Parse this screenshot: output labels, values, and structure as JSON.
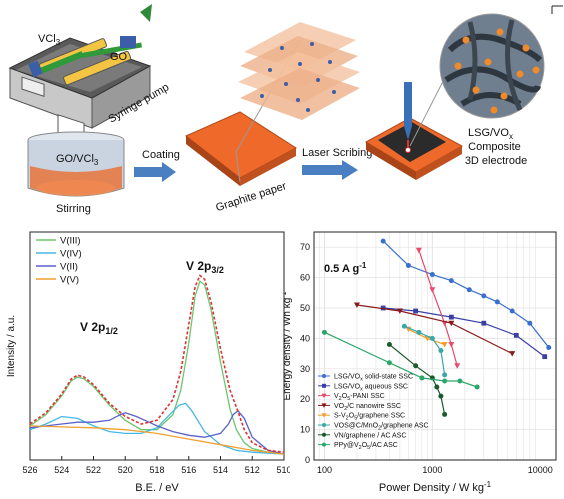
{
  "schematic": {
    "vcl3_label": "VCl",
    "vcl3_sub": "3",
    "go_label": "GO",
    "pump_label": "Syringe pump",
    "beaker_label": "GO/VCl",
    "beaker_sub": "3",
    "stirring_label": "Stirring",
    "coating_label": "Coating",
    "graphite_label": "Graphite paper",
    "laser_label": "Laser Scribing",
    "composite_line1": "LSG/VO",
    "composite_line1_sub": "x",
    "composite_line2": "Composite",
    "composite_line3": "3D electrode",
    "colors": {
      "orange": "#e8622a",
      "arrow": "#4a7fc1",
      "dark": "#2b2b2b"
    }
  },
  "chart_data": [
    {
      "type": "line",
      "title": "",
      "xlabel": "B.E. / eV",
      "ylabel": "Intensity / a.u.",
      "xlim": [
        526,
        510
      ],
      "x_ticks": [
        "526",
        "524",
        "522",
        "520",
        "518",
        "516",
        "514",
        "512",
        "510"
      ],
      "legend": [
        {
          "name": "V(III)",
          "color": "#6cc56c"
        },
        {
          "name": "V(IV)",
          "color": "#45b8e6"
        },
        {
          "name": "V(II)",
          "color": "#5a62c8"
        },
        {
          "name": "V(V)",
          "color": "#f0a030"
        }
      ],
      "annotations": [
        {
          "text": "V 2p",
          "sub": "1/2"
        },
        {
          "text": "V 2p",
          "sub": "3/2"
        }
      ],
      "series": [
        {
          "name": "V(III)",
          "color": "#6cc56c",
          "x": [
            526.5,
            525,
            524,
            523.4,
            523,
            522.6,
            522,
            521,
            520,
            519,
            518,
            517,
            516.5,
            516,
            515.6,
            515.3,
            515,
            514.6,
            514,
            513.4,
            513,
            512.5,
            512,
            511,
            510
          ],
          "y": [
            0.16,
            0.22,
            0.32,
            0.4,
            0.42,
            0.41,
            0.37,
            0.27,
            0.19,
            0.14,
            0.14,
            0.22,
            0.35,
            0.6,
            0.85,
            0.93,
            0.91,
            0.78,
            0.5,
            0.25,
            0.14,
            0.07,
            0.04,
            0.02,
            0.01
          ]
        },
        {
          "name": "V(IV)",
          "color": "#45b8e6",
          "x": [
            526.5,
            525,
            524,
            523,
            522,
            521,
            520,
            519,
            518,
            517.2,
            516.6,
            516.2,
            515.8,
            515,
            514,
            513,
            512,
            510
          ],
          "y": [
            0.14,
            0.17,
            0.21,
            0.2,
            0.16,
            0.13,
            0.12,
            0.12,
            0.15,
            0.22,
            0.27,
            0.28,
            0.24,
            0.13,
            0.06,
            0.03,
            0.02,
            0.01
          ]
        },
        {
          "name": "V(II)",
          "color": "#5a62c8",
          "x": [
            526.5,
            525,
            524,
            523,
            522,
            521,
            520.3,
            520,
            519.3,
            518.5,
            518,
            517,
            516,
            515,
            514,
            513.5,
            513.2,
            512.9,
            512.5,
            512,
            511,
            510
          ],
          "y": [
            0.15,
            0.16,
            0.17,
            0.18,
            0.18,
            0.19,
            0.22,
            0.23,
            0.21,
            0.18,
            0.16,
            0.13,
            0.11,
            0.1,
            0.12,
            0.17,
            0.22,
            0.24,
            0.2,
            0.1,
            0.03,
            0.01
          ]
        },
        {
          "name": "V(V)",
          "color": "#f0a030",
          "x": [
            526.5,
            524,
            522,
            520,
            518,
            516,
            514,
            512,
            510
          ],
          "y": [
            0.16,
            0.155,
            0.15,
            0.14,
            0.12,
            0.09,
            0.06,
            0.03,
            0.01
          ]
        },
        {
          "name": "",
          "color": "#e03030",
          "dashed": true,
          "x": [
            526.5,
            525,
            524,
            523.4,
            523,
            522.6,
            522,
            521,
            520,
            519,
            518,
            517,
            516.5,
            516,
            515.6,
            515.3,
            515,
            514.6,
            514,
            513.4,
            513,
            512.5,
            512,
            511,
            510
          ],
          "y": [
            0.17,
            0.23,
            0.33,
            0.41,
            0.43,
            0.42,
            0.38,
            0.28,
            0.21,
            0.17,
            0.19,
            0.3,
            0.45,
            0.7,
            0.9,
            0.96,
            0.94,
            0.82,
            0.57,
            0.35,
            0.26,
            0.14,
            0.07,
            0.03,
            0.02
          ]
        }
      ]
    },
    {
      "type": "line",
      "title": "",
      "xlabel": "Power Density / W kg",
      "xlabel_sup": "-1",
      "ylabel": "Energy density / Wh kg",
      "ylabel_sup": "-1",
      "xscale": "log",
      "xlim": [
        80,
        14000
      ],
      "ylim": [
        0,
        75
      ],
      "x_ticks": [
        {
          "v": 100,
          "t": "100"
        },
        {
          "v": 1000,
          "t": "1000"
        },
        {
          "v": 10000,
          "t": "10000"
        }
      ],
      "y_ticks": [
        0,
        10,
        20,
        30,
        40,
        50,
        60,
        70
      ],
      "grid": true,
      "annotation": {
        "text": "0.5 A g",
        "sup": "-1"
      },
      "series": [
        {
          "name": "LSG/VO",
          "name_sub": "x",
          "name_rest": " solid-state SSC",
          "color": "#3a6fd0",
          "marker": "circle",
          "x": [
            350,
            600,
            1000,
            1500,
            2200,
            3000,
            4000,
            5500,
            8000,
            12000
          ],
          "y": [
            72,
            64,
            61,
            59,
            56,
            54,
            52,
            49,
            45,
            37
          ]
        },
        {
          "name": "LSG/VO",
          "name_sub": "x",
          "name_rest": " aqueous SSC",
          "color": "#3840a8",
          "marker": "square",
          "x": [
            350,
            700,
            1500,
            3000,
            6000,
            11000
          ],
          "y": [
            50,
            49,
            47,
            45,
            41,
            34
          ]
        },
        {
          "name": "V",
          "name_sub": "2",
          "name_rest": "O",
          "name_sub2": "5",
          "name_rest2": "-PANI SSC",
          "color": "#e84a6a",
          "marker": "tri-down",
          "x": [
            750,
            1000,
            1300,
            1500,
            1700
          ],
          "y": [
            69,
            56,
            45,
            38,
            31
          ]
        },
        {
          "name": "VO",
          "name_sub": "2",
          "name_rest": "/C nanowire SSC",
          "color": "#8a1a1a",
          "marker": "tri-down",
          "x": [
            200,
            500,
            1500,
            5500
          ],
          "y": [
            51,
            49,
            45,
            35
          ]
        },
        {
          "name": "S-V",
          "name_sub": "2",
          "name_rest": "O",
          "name_sub2": "5",
          "name_rest2": "/graphene SSC",
          "color": "#f0a030",
          "marker": "tri-down",
          "x": [
            600,
            900,
            1300
          ],
          "y": [
            43,
            40,
            38
          ]
        },
        {
          "name": "VOS@C/MnO",
          "name_sub": "2",
          "name_rest": "/graphene ASC",
          "color": "#3aa8a8",
          "marker": "circle",
          "x": [
            550,
            750,
            1000,
            1200,
            1300
          ],
          "y": [
            44,
            42,
            40,
            36,
            28
          ]
        },
        {
          "name": "VN/graphene / AC ASC",
          "color": "#1a5a2a",
          "marker": "circle",
          "x": [
            400,
            700,
            1000,
            1100,
            1200,
            1300
          ],
          "y": [
            38,
            31,
            27,
            24,
            21,
            15
          ]
        },
        {
          "name": "PPy@V",
          "name_sub": "2",
          "name_rest": "O",
          "name_sub2": "5",
          "name_rest2": "/AC ASC",
          "color": "#2aa86a",
          "marker": "circle",
          "x": [
            100,
            400,
            800,
            1300,
            1800,
            2600
          ],
          "y": [
            42,
            32,
            27,
            26,
            26,
            24
          ]
        }
      ]
    }
  ]
}
